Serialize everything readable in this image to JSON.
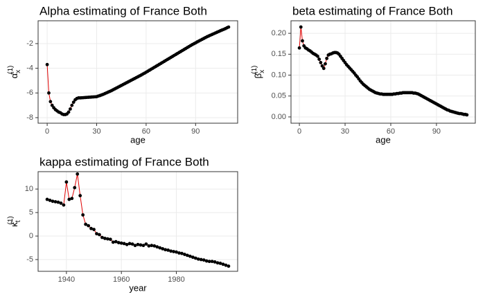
{
  "chart_data": [
    {
      "type": "line",
      "title": "Alpha estimating of France Both",
      "xlabel": "age",
      "ylabel": {
        "symbol": "α̂",
        "sub": "x",
        "sup": "(1)"
      },
      "color": "#e00000",
      "marker_color": "#000000",
      "grid": true,
      "xlim": [
        -5.5,
        115.5
      ],
      "xticks": [
        0,
        30,
        60,
        90
      ],
      "ylim": [
        -8.45,
        -0.15
      ],
      "yticks": [
        -8,
        -6,
        -4,
        -2
      ],
      "x": [
        0,
        1,
        2,
        3,
        4,
        5,
        6,
        7,
        8,
        9,
        10,
        11,
        12,
        13,
        14,
        15,
        16,
        17,
        18,
        19,
        20,
        21,
        22,
        23,
        24,
        25,
        26,
        27,
        28,
        29,
        30,
        31,
        32,
        33,
        34,
        35,
        36,
        37,
        38,
        39,
        40,
        41,
        42,
        43,
        44,
        45,
        46,
        47,
        48,
        49,
        50,
        51,
        52,
        53,
        54,
        55,
        56,
        57,
        58,
        59,
        60,
        61,
        62,
        63,
        64,
        65,
        66,
        67,
        68,
        69,
        70,
        71,
        72,
        73,
        74,
        75,
        76,
        77,
        78,
        79,
        80,
        81,
        82,
        83,
        84,
        85,
        86,
        87,
        88,
        89,
        90,
        91,
        92,
        93,
        94,
        95,
        96,
        97,
        98,
        99,
        100,
        101,
        102,
        103,
        104,
        105,
        106,
        107,
        108,
        109,
        110
      ],
      "values": [
        -3.7,
        -6.0,
        -6.7,
        -7.0,
        -7.2,
        -7.35,
        -7.45,
        -7.55,
        -7.6,
        -7.7,
        -7.75,
        -7.75,
        -7.7,
        -7.55,
        -7.3,
        -7.0,
        -6.75,
        -6.55,
        -6.45,
        -6.4,
        -6.4,
        -6.39,
        -6.38,
        -6.37,
        -6.36,
        -6.35,
        -6.34,
        -6.33,
        -6.32,
        -6.31,
        -6.3,
        -6.25,
        -6.21,
        -6.16,
        -6.11,
        -6.05,
        -5.99,
        -5.93,
        -5.87,
        -5.81,
        -5.74,
        -5.67,
        -5.6,
        -5.53,
        -5.46,
        -5.39,
        -5.32,
        -5.25,
        -5.18,
        -5.11,
        -5.04,
        -4.97,
        -4.9,
        -4.83,
        -4.76,
        -4.69,
        -4.62,
        -4.55,
        -4.47,
        -4.4,
        -4.32,
        -4.24,
        -4.16,
        -4.08,
        -4.0,
        -3.92,
        -3.84,
        -3.76,
        -3.68,
        -3.6,
        -3.52,
        -3.44,
        -3.36,
        -3.28,
        -3.2,
        -3.12,
        -3.04,
        -2.96,
        -2.88,
        -2.8,
        -2.72,
        -2.64,
        -2.56,
        -2.48,
        -2.4,
        -2.32,
        -2.24,
        -2.16,
        -2.08,
        -2.01,
        -1.94,
        -1.86,
        -1.79,
        -1.72,
        -1.65,
        -1.58,
        -1.51,
        -1.44,
        -1.38,
        -1.32,
        -1.26,
        -1.2,
        -1.14,
        -1.08,
        -1.02,
        -0.96,
        -0.9,
        -0.85,
        -0.79,
        -0.72,
        -0.66
      ]
    },
    {
      "type": "line",
      "title": "beta estimating of France Both",
      "xlabel": "age",
      "ylabel": {
        "symbol": "β̂",
        "sub": "x",
        "sup": "(1)"
      },
      "color": "#e00000",
      "marker_color": "#000000",
      "grid": true,
      "xlim": [
        -5.5,
        115.5
      ],
      "xticks": [
        0,
        30,
        60,
        90
      ],
      "ylim": [
        -0.015,
        0.23
      ],
      "yticks": [
        {
          "value": 0,
          "label": "0.00"
        },
        {
          "value": 0.05,
          "label": "0.05"
        },
        {
          "value": 0.1,
          "label": "0.10"
        },
        {
          "value": 0.15,
          "label": "0.15"
        },
        {
          "value": 0.2,
          "label": "0.20"
        }
      ],
      "x": [
        0,
        1,
        2,
        3,
        4,
        5,
        6,
        7,
        8,
        9,
        10,
        11,
        12,
        13,
        14,
        15,
        16,
        17,
        18,
        19,
        20,
        21,
        22,
        23,
        24,
        25,
        26,
        27,
        28,
        29,
        30,
        31,
        32,
        33,
        34,
        35,
        36,
        37,
        38,
        39,
        40,
        41,
        42,
        43,
        44,
        45,
        46,
        47,
        48,
        49,
        50,
        51,
        52,
        53,
        54,
        55,
        56,
        57,
        58,
        59,
        60,
        61,
        62,
        63,
        64,
        65,
        66,
        67,
        68,
        69,
        70,
        71,
        72,
        73,
        74,
        75,
        76,
        77,
        78,
        79,
        80,
        81,
        82,
        83,
        84,
        85,
        86,
        87,
        88,
        89,
        90,
        91,
        92,
        93,
        94,
        95,
        96,
        97,
        98,
        99,
        100,
        101,
        102,
        103,
        104,
        105,
        106,
        107,
        108,
        109,
        110
      ],
      "values": [
        0.165,
        0.215,
        0.182,
        0.17,
        0.165,
        0.163,
        0.16,
        0.158,
        0.155,
        0.152,
        0.15,
        0.148,
        0.145,
        0.138,
        0.13,
        0.122,
        0.116,
        0.127,
        0.14,
        0.148,
        0.15,
        0.151,
        0.153,
        0.154,
        0.154,
        0.153,
        0.15,
        0.145,
        0.14,
        0.135,
        0.13,
        0.125,
        0.121,
        0.117,
        0.113,
        0.109,
        0.105,
        0.1,
        0.096,
        0.091,
        0.086,
        0.082,
        0.078,
        0.075,
        0.072,
        0.069,
        0.066,
        0.064,
        0.062,
        0.06,
        0.058,
        0.057,
        0.056,
        0.055,
        0.055,
        0.054,
        0.054,
        0.054,
        0.054,
        0.054,
        0.054,
        0.054,
        0.055,
        0.055,
        0.056,
        0.056,
        0.057,
        0.057,
        0.058,
        0.058,
        0.058,
        0.058,
        0.058,
        0.058,
        0.058,
        0.057,
        0.057,
        0.056,
        0.055,
        0.053,
        0.051,
        0.049,
        0.047,
        0.045,
        0.043,
        0.041,
        0.039,
        0.037,
        0.035,
        0.033,
        0.031,
        0.029,
        0.027,
        0.025,
        0.023,
        0.021,
        0.019,
        0.017,
        0.016,
        0.014,
        0.013,
        0.012,
        0.011,
        0.01,
        0.009,
        0.008,
        0.008,
        0.007,
        0.006,
        0.006,
        0.005
      ]
    },
    {
      "type": "line",
      "title": "kappa estimating of France Both",
      "xlabel": "year",
      "ylabel": {
        "symbol": "κ̂",
        "sub": "t",
        "sup": "(1)"
      },
      "color": "#e00000",
      "marker_color": "#000000",
      "grid": true,
      "xlim": [
        1929.7,
        2002.3
      ],
      "xticks": [
        1940,
        1960,
        1980
      ],
      "ylim": [
        -7.5,
        13.7
      ],
      "yticks": [
        -5,
        0,
        5,
        10
      ],
      "x": [
        1933,
        1934,
        1935,
        1936,
        1937,
        1938,
        1939,
        1940,
        1941,
        1942,
        1943,
        1944,
        1945,
        1946,
        1947,
        1948,
        1949,
        1950,
        1951,
        1952,
        1953,
        1954,
        1955,
        1956,
        1957,
        1958,
        1959,
        1960,
        1961,
        1962,
        1963,
        1964,
        1965,
        1966,
        1967,
        1968,
        1969,
        1970,
        1971,
        1972,
        1973,
        1974,
        1975,
        1976,
        1977,
        1978,
        1979,
        1980,
        1981,
        1982,
        1983,
        1984,
        1985,
        1986,
        1987,
        1988,
        1989,
        1990,
        1991,
        1992,
        1993,
        1994,
        1995,
        1996,
        1997,
        1998,
        1999
      ],
      "values": [
        7.8,
        7.6,
        7.4,
        7.3,
        7.2,
        7.0,
        6.6,
        11.5,
        7.8,
        8.0,
        10.3,
        13.2,
        8.6,
        4.5,
        2.5,
        2.2,
        1.6,
        1.4,
        0.5,
        0.3,
        -0.3,
        -0.5,
        -0.6,
        -0.7,
        -1.3,
        -1.2,
        -1.4,
        -1.5,
        -1.6,
        -1.8,
        -1.6,
        -1.7,
        -2.0,
        -1.8,
        -1.9,
        -2.0,
        -1.7,
        -2.1,
        -2.0,
        -2.1,
        -2.3,
        -2.5,
        -2.7,
        -2.9,
        -3.0,
        -3.2,
        -3.3,
        -3.4,
        -3.6,
        -3.7,
        -3.9,
        -4.1,
        -4.3,
        -4.5,
        -4.7,
        -4.9,
        -5.0,
        -5.1,
        -5.3,
        -5.4,
        -5.4,
        -5.5,
        -5.7,
        -5.8,
        -6.0,
        -6.2,
        -6.4
      ]
    }
  ]
}
